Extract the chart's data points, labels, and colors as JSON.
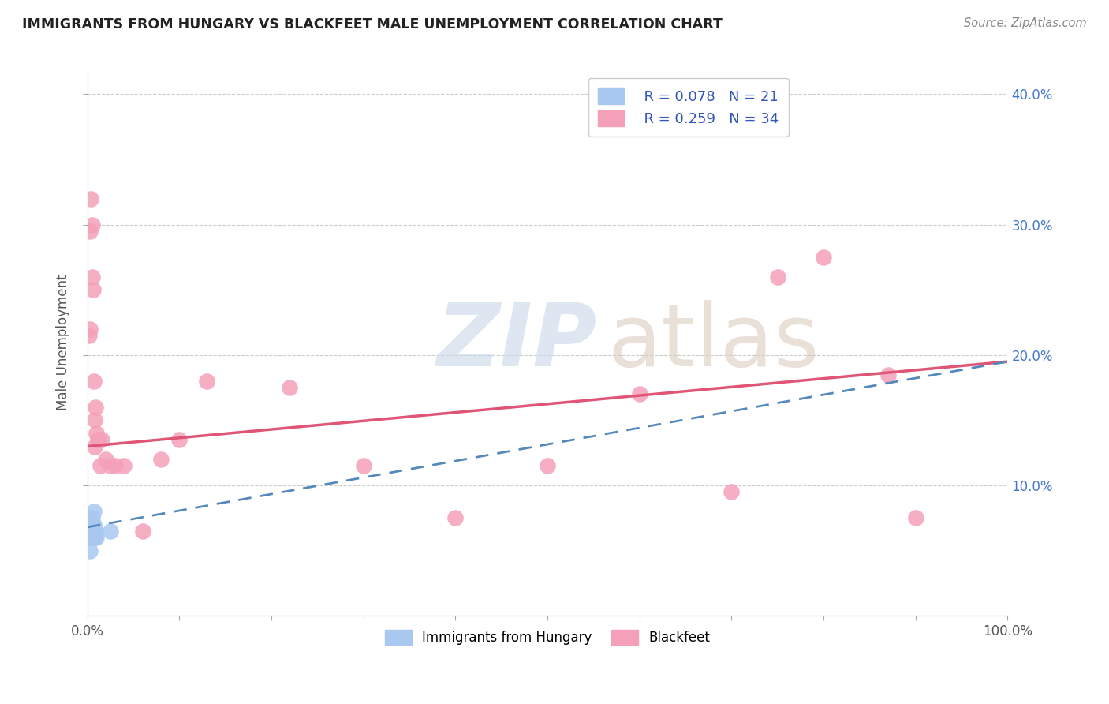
{
  "title": "IMMIGRANTS FROM HUNGARY VS BLACKFEET MALE UNEMPLOYMENT CORRELATION CHART",
  "source": "Source: ZipAtlas.com",
  "ylabel": "Male Unemployment",
  "xlim": [
    0,
    1.0
  ],
  "ylim": [
    0,
    0.42
  ],
  "xticks": [
    0.0,
    0.1,
    0.2,
    0.3,
    0.4,
    0.5,
    0.6,
    0.7,
    0.8,
    0.9,
    1.0
  ],
  "yticks": [
    0.0,
    0.1,
    0.2,
    0.3,
    0.4
  ],
  "yticklabels_right": [
    "",
    "10.0%",
    "20.0%",
    "30.0%",
    "40.0%"
  ],
  "legend_r1": "R = 0.078",
  "legend_n1": "N = 21",
  "legend_r2": "R = 0.259",
  "legend_n2": "N = 34",
  "blue_color": "#a8c8f0",
  "pink_color": "#f4a0b8",
  "blue_line_color": "#5588bb",
  "pink_line_color": "#e05575",
  "grid_color": "#cccccc",
  "background_color": "#ffffff",
  "blue_scatter_x": [
    0.001,
    0.002,
    0.002,
    0.003,
    0.003,
    0.004,
    0.004,
    0.004,
    0.005,
    0.005,
    0.005,
    0.006,
    0.006,
    0.006,
    0.007,
    0.007,
    0.008,
    0.008,
    0.009,
    0.01,
    0.025
  ],
  "blue_scatter_y": [
    0.075,
    0.065,
    0.06,
    0.05,
    0.068,
    0.065,
    0.06,
    0.07,
    0.065,
    0.07,
    0.075,
    0.06,
    0.065,
    0.07,
    0.07,
    0.08,
    0.06,
    0.065,
    0.065,
    0.06,
    0.065
  ],
  "pink_scatter_x": [
    0.002,
    0.003,
    0.003,
    0.004,
    0.005,
    0.005,
    0.006,
    0.007,
    0.008,
    0.008,
    0.009,
    0.01,
    0.011,
    0.012,
    0.014,
    0.016,
    0.02,
    0.025,
    0.03,
    0.04,
    0.06,
    0.08,
    0.1,
    0.13,
    0.22,
    0.3,
    0.4,
    0.5,
    0.6,
    0.7,
    0.75,
    0.8,
    0.87,
    0.9
  ],
  "pink_scatter_y": [
    0.215,
    0.22,
    0.295,
    0.32,
    0.3,
    0.26,
    0.25,
    0.18,
    0.13,
    0.15,
    0.16,
    0.14,
    0.135,
    0.135,
    0.115,
    0.135,
    0.12,
    0.115,
    0.115,
    0.115,
    0.065,
    0.12,
    0.135,
    0.18,
    0.175,
    0.115,
    0.075,
    0.115,
    0.17,
    0.095,
    0.26,
    0.275,
    0.185,
    0.075
  ],
  "blue_trend_x": [
    0.0,
    1.0
  ],
  "blue_trend_y_start": 0.068,
  "blue_trend_y_end": 0.195,
  "pink_trend_x": [
    0.0,
    1.0
  ],
  "pink_trend_y_start": 0.13,
  "pink_trend_y_end": 0.195
}
